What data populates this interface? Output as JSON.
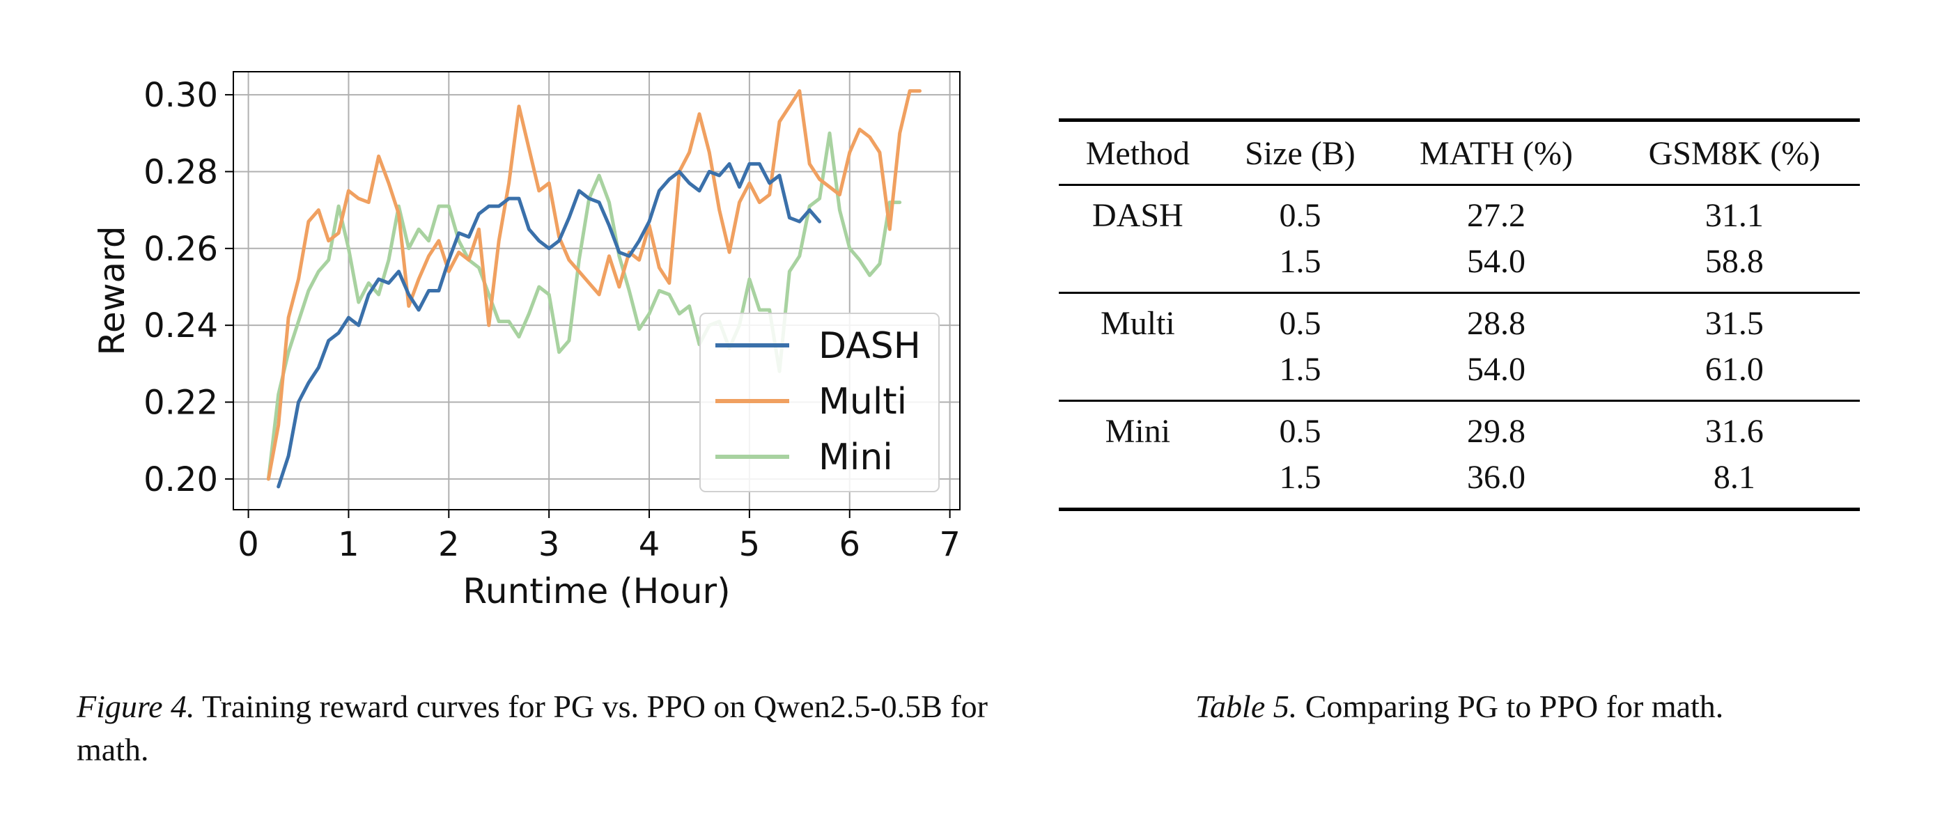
{
  "chart_data": {
    "type": "line",
    "xlabel": "Runtime (Hour)",
    "ylabel": "Reward",
    "xlim": [
      -0.15,
      7.1
    ],
    "ylim": [
      0.192,
      0.306
    ],
    "xticks": [
      0,
      1,
      2,
      3,
      4,
      5,
      6,
      7
    ],
    "yticks": [
      0.2,
      0.22,
      0.24,
      0.26,
      0.28,
      0.3
    ],
    "ytick_labels": [
      "0.20",
      "0.22",
      "0.24",
      "0.26",
      "0.28",
      "0.30"
    ],
    "grid": true,
    "legend_position": "lower-right",
    "series": [
      {
        "name": "DASH",
        "color": "#3a70aa",
        "points": [
          [
            0.3,
            0.198
          ],
          [
            0.4,
            0.206
          ],
          [
            0.5,
            0.22
          ],
          [
            0.6,
            0.225
          ],
          [
            0.7,
            0.229
          ],
          [
            0.8,
            0.236
          ],
          [
            0.9,
            0.238
          ],
          [
            1.0,
            0.242
          ],
          [
            1.1,
            0.24
          ],
          [
            1.2,
            0.248
          ],
          [
            1.3,
            0.252
          ],
          [
            1.4,
            0.251
          ],
          [
            1.5,
            0.254
          ],
          [
            1.6,
            0.248
          ],
          [
            1.7,
            0.244
          ],
          [
            1.8,
            0.249
          ],
          [
            1.9,
            0.249
          ],
          [
            2.0,
            0.257
          ],
          [
            2.1,
            0.264
          ],
          [
            2.2,
            0.263
          ],
          [
            2.3,
            0.269
          ],
          [
            2.4,
            0.271
          ],
          [
            2.5,
            0.271
          ],
          [
            2.6,
            0.273
          ],
          [
            2.7,
            0.273
          ],
          [
            2.8,
            0.265
          ],
          [
            2.9,
            0.262
          ],
          [
            3.0,
            0.26
          ],
          [
            3.1,
            0.262
          ],
          [
            3.2,
            0.268
          ],
          [
            3.3,
            0.275
          ],
          [
            3.4,
            0.273
          ],
          [
            3.5,
            0.272
          ],
          [
            3.6,
            0.266
          ],
          [
            3.7,
            0.259
          ],
          [
            3.8,
            0.258
          ],
          [
            3.9,
            0.262
          ],
          [
            4.0,
            0.267
          ],
          [
            4.1,
            0.275
          ],
          [
            4.2,
            0.278
          ],
          [
            4.3,
            0.28
          ],
          [
            4.4,
            0.277
          ],
          [
            4.5,
            0.275
          ],
          [
            4.6,
            0.28
          ],
          [
            4.7,
            0.279
          ],
          [
            4.8,
            0.282
          ],
          [
            4.9,
            0.276
          ],
          [
            5.0,
            0.282
          ],
          [
            5.1,
            0.282
          ],
          [
            5.2,
            0.277
          ],
          [
            5.3,
            0.279
          ],
          [
            5.4,
            0.268
          ],
          [
            5.5,
            0.267
          ],
          [
            5.6,
            0.27
          ],
          [
            5.7,
            0.267
          ]
        ]
      },
      {
        "name": "Multi",
        "color": "#f0a060",
        "points": [
          [
            0.2,
            0.2
          ],
          [
            0.3,
            0.214
          ],
          [
            0.4,
            0.242
          ],
          [
            0.5,
            0.252
          ],
          [
            0.6,
            0.267
          ],
          [
            0.7,
            0.27
          ],
          [
            0.8,
            0.262
          ],
          [
            0.9,
            0.264
          ],
          [
            1.0,
            0.275
          ],
          [
            1.1,
            0.273
          ],
          [
            1.2,
            0.272
          ],
          [
            1.3,
            0.284
          ],
          [
            1.4,
            0.277
          ],
          [
            1.5,
            0.269
          ],
          [
            1.6,
            0.245
          ],
          [
            1.7,
            0.252
          ],
          [
            1.8,
            0.258
          ],
          [
            1.9,
            0.262
          ],
          [
            2.0,
            0.254
          ],
          [
            2.1,
            0.259
          ],
          [
            2.2,
            0.257
          ],
          [
            2.3,
            0.265
          ],
          [
            2.4,
            0.24
          ],
          [
            2.5,
            0.262
          ],
          [
            2.6,
            0.277
          ],
          [
            2.7,
            0.297
          ],
          [
            2.8,
            0.286
          ],
          [
            2.9,
            0.275
          ],
          [
            3.0,
            0.277
          ],
          [
            3.1,
            0.263
          ],
          [
            3.2,
            0.257
          ],
          [
            3.3,
            0.254
          ],
          [
            3.4,
            0.251
          ],
          [
            3.5,
            0.248
          ],
          [
            3.6,
            0.258
          ],
          [
            3.7,
            0.25
          ],
          [
            3.8,
            0.259
          ],
          [
            3.9,
            0.257
          ],
          [
            4.0,
            0.266
          ],
          [
            4.1,
            0.255
          ],
          [
            4.2,
            0.251
          ],
          [
            4.3,
            0.28
          ],
          [
            4.4,
            0.285
          ],
          [
            4.5,
            0.295
          ],
          [
            4.6,
            0.285
          ],
          [
            4.7,
            0.27
          ],
          [
            4.8,
            0.259
          ],
          [
            4.9,
            0.272
          ],
          [
            5.0,
            0.277
          ],
          [
            5.1,
            0.272
          ],
          [
            5.2,
            0.274
          ],
          [
            5.3,
            0.293
          ],
          [
            5.4,
            0.297
          ],
          [
            5.5,
            0.301
          ],
          [
            5.6,
            0.282
          ],
          [
            5.7,
            0.278
          ],
          [
            5.8,
            0.276
          ],
          [
            5.9,
            0.274
          ],
          [
            6.0,
            0.285
          ],
          [
            6.1,
            0.291
          ],
          [
            6.2,
            0.289
          ],
          [
            6.3,
            0.285
          ],
          [
            6.4,
            0.265
          ],
          [
            6.5,
            0.29
          ],
          [
            6.6,
            0.301
          ],
          [
            6.7,
            0.301
          ]
        ]
      },
      {
        "name": "Mini",
        "color": "#a8d2a0",
        "points": [
          [
            0.2,
            0.2
          ],
          [
            0.3,
            0.222
          ],
          [
            0.4,
            0.233
          ],
          [
            0.5,
            0.241
          ],
          [
            0.6,
            0.249
          ],
          [
            0.7,
            0.254
          ],
          [
            0.8,
            0.257
          ],
          [
            0.9,
            0.271
          ],
          [
            1.0,
            0.26
          ],
          [
            1.1,
            0.246
          ],
          [
            1.2,
            0.251
          ],
          [
            1.3,
            0.248
          ],
          [
            1.4,
            0.257
          ],
          [
            1.5,
            0.271
          ],
          [
            1.6,
            0.26
          ],
          [
            1.7,
            0.265
          ],
          [
            1.8,
            0.262
          ],
          [
            1.9,
            0.271
          ],
          [
            2.0,
            0.271
          ],
          [
            2.1,
            0.262
          ],
          [
            2.2,
            0.257
          ],
          [
            2.3,
            0.255
          ],
          [
            2.4,
            0.248
          ],
          [
            2.5,
            0.241
          ],
          [
            2.6,
            0.241
          ],
          [
            2.7,
            0.237
          ],
          [
            2.8,
            0.243
          ],
          [
            2.9,
            0.25
          ],
          [
            3.0,
            0.248
          ],
          [
            3.1,
            0.233
          ],
          [
            3.2,
            0.236
          ],
          [
            3.3,
            0.257
          ],
          [
            3.4,
            0.273
          ],
          [
            3.5,
            0.279
          ],
          [
            3.6,
            0.272
          ],
          [
            3.7,
            0.258
          ],
          [
            3.8,
            0.249
          ],
          [
            3.9,
            0.239
          ],
          [
            4.0,
            0.243
          ],
          [
            4.1,
            0.249
          ],
          [
            4.2,
            0.248
          ],
          [
            4.3,
            0.243
          ],
          [
            4.4,
            0.245
          ],
          [
            4.5,
            0.235
          ],
          [
            4.6,
            0.24
          ],
          [
            4.7,
            0.241
          ],
          [
            4.8,
            0.234
          ],
          [
            4.9,
            0.24
          ],
          [
            5.0,
            0.252
          ],
          [
            5.1,
            0.244
          ],
          [
            5.2,
            0.244
          ],
          [
            5.3,
            0.228
          ],
          [
            5.4,
            0.254
          ],
          [
            5.5,
            0.258
          ],
          [
            5.6,
            0.271
          ],
          [
            5.7,
            0.273
          ],
          [
            5.8,
            0.29
          ],
          [
            5.9,
            0.27
          ],
          [
            6.0,
            0.26
          ],
          [
            6.1,
            0.257
          ],
          [
            6.2,
            0.253
          ],
          [
            6.3,
            0.256
          ],
          [
            6.4,
            0.272
          ],
          [
            6.5,
            0.272
          ]
        ]
      }
    ]
  },
  "figure_caption": {
    "lead": "Figure 4.",
    "text": " Training reward curves for PG vs.  PPO on Qwen2.5-0.5B for math."
  },
  "table": {
    "headers": [
      "Method",
      "Size (B)",
      "MATH (%)",
      "GSM8K (%)"
    ],
    "groups": [
      {
        "method": "DASH",
        "rows": [
          [
            "0.5",
            "27.2",
            "31.1"
          ],
          [
            "1.5",
            "54.0",
            "58.8"
          ]
        ]
      },
      {
        "method": "Multi",
        "rows": [
          [
            "0.5",
            "28.8",
            "31.5"
          ],
          [
            "1.5",
            "54.0",
            "61.0"
          ]
        ]
      },
      {
        "method": "Mini",
        "rows": [
          [
            "0.5",
            "29.8",
            "31.6"
          ],
          [
            "1.5",
            "36.0",
            "8.1"
          ]
        ]
      }
    ]
  },
  "table_caption": {
    "lead": "Table 5.",
    "text": " Comparing PG to PPO for math."
  }
}
